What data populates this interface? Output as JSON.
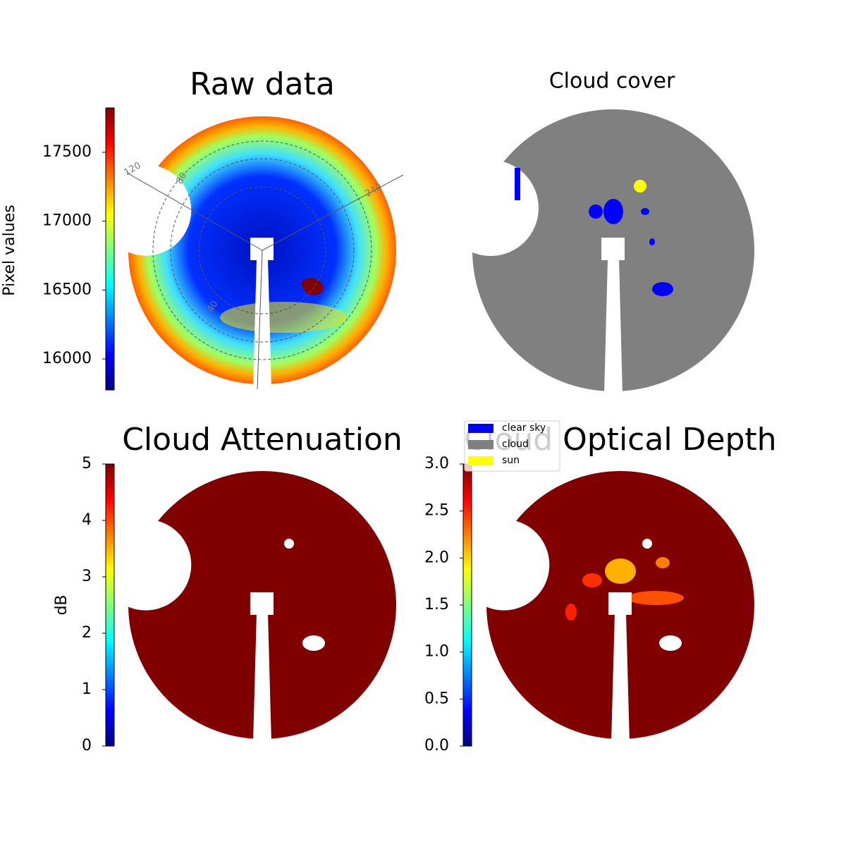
{
  "chart_data": [
    {
      "type": "image",
      "title": "Raw data",
      "colorbar_label": "Pixel values",
      "colormap": "jet",
      "clim": [
        15775,
        17822
      ],
      "cticks": [
        16000,
        16500,
        17000,
        17500
      ],
      "annotations": [
        "120",
        "80",
        "240",
        "40"
      ]
    },
    {
      "type": "image",
      "title": "Cloud cover",
      "legend": [
        {
          "name": "clear sky",
          "color": "#0000ff"
        },
        {
          "name": "cloud",
          "color": "#808080"
        },
        {
          "name": "sun",
          "color": "#ffff00"
        }
      ]
    },
    {
      "type": "image",
      "title": "Cloud Attenuation",
      "colorbar_label": "dB",
      "colormap": "jet",
      "clim": [
        0,
        5
      ],
      "cticks": [
        0,
        1,
        2,
        3,
        4,
        5
      ]
    },
    {
      "type": "image",
      "title": "Cloud Optical Depth",
      "colormap": "jet",
      "clim": [
        0,
        3
      ],
      "cticks": [
        {
          "value": 0,
          "label": "0.0"
        },
        {
          "value": 0.5,
          "label": "0.5"
        },
        {
          "value": 1,
          "label": "1.0"
        },
        {
          "value": 1.5,
          "label": "1.5"
        },
        {
          "value": 2,
          "label": "2.0"
        },
        {
          "value": 2.5,
          "label": "2.5"
        },
        {
          "value": 3,
          "label": "3.0"
        }
      ]
    }
  ]
}
